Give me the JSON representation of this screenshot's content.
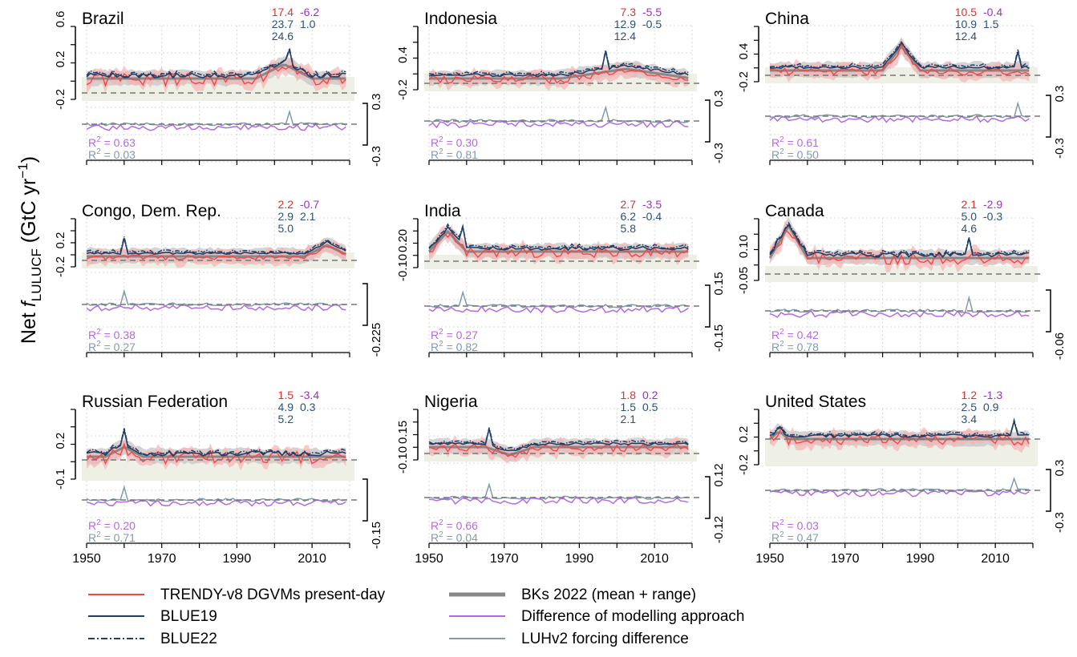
{
  "figure": {
    "ylabel_main": "Net ",
    "ylabel_italic": "f",
    "ylabel_sub": "LULUCF",
    "ylabel_unit": " (GtC yr",
    "ylabel_sup": "−1",
    "ylabel_close": ")"
  },
  "colors": {
    "trendy": "#f04848",
    "trendy_band": "#f7b3b3",
    "blue": "#1f3f66",
    "bk": "#888888",
    "bk_band": "#c9c9c9",
    "diff_model": "#b36ae2",
    "diff_luh": "#7f9bb0",
    "neg_band": "#eef0e6",
    "dash": "#777777",
    "stat_red": "#e03030",
    "stat_purple": "#9c2ecf",
    "stat_blue": "#2c5179"
  },
  "legend": [
    {
      "label": "TRENDY-v8 DGVMs present-day",
      "style": "trendy"
    },
    {
      "label": "BKs 2022 (mean + range)",
      "style": "bk"
    },
    {
      "label": "BLUE19",
      "style": "blue19"
    },
    {
      "label": "Difference of modelling approach",
      "style": "diffmodel"
    },
    {
      "label": "BLUE22",
      "style": "blue22"
    },
    {
      "label": "LUHv2 forcing difference",
      "style": "diffluh"
    }
  ],
  "x_ticks": [
    "1950",
    "1970",
    "1990",
    "2010"
  ],
  "chart_data": [
    {
      "type": "line",
      "title": "Brazil",
      "x_range": [
        1950,
        2020
      ],
      "upper_ticks": [
        "-0.2",
        "0.2",
        "0.6"
      ],
      "lower_ticks": [
        "-0.3",
        "0.3"
      ],
      "stats": {
        "trendy": "17.4",
        "trendy_diff": "-6.2",
        "blue19": "23.7",
        "blue19_diff": "1.0",
        "blue22": "24.6"
      },
      "r2_model": "0.63",
      "r2_luh": "0.03"
    },
    {
      "type": "line",
      "title": "Indonesia",
      "x_range": [
        1950,
        2020
      ],
      "upper_ticks": [
        "-0.2",
        "0.4"
      ],
      "lower_ticks": [
        "-0.3",
        "0.3"
      ],
      "stats": {
        "trendy": "7.3",
        "trendy_diff": "-5.5",
        "blue19": "12.9",
        "blue19_diff": "-0.5",
        "blue22": "12.4"
      },
      "r2_model": "0.30",
      "r2_luh": "0.81"
    },
    {
      "type": "line",
      "title": "China",
      "x_range": [
        1950,
        2020
      ],
      "upper_ticks": [
        "-0.2",
        "0.4"
      ],
      "lower_ticks": [
        "-0.3",
        "0.3"
      ],
      "stats": {
        "trendy": "10.5",
        "trendy_diff": "-0.4",
        "blue19": "10.9",
        "blue19_diff": "1.5",
        "blue22": "12.4"
      },
      "r2_model": "0.61",
      "r2_luh": "0.50"
    },
    {
      "type": "line",
      "title": "Congo, Dem. Rep.",
      "x_range": [
        1950,
        2020
      ],
      "upper_ticks": [
        "-0.2",
        "0.2"
      ],
      "lower_ticks": [
        "-0.225"
      ],
      "stats": {
        "trendy": "2.2",
        "trendy_diff": "-0.7",
        "blue19": "2.9",
        "blue19_diff": "2.1",
        "blue22": "5.0"
      },
      "r2_model": "0.38",
      "r2_luh": "0.27"
    },
    {
      "type": "line",
      "title": "India",
      "x_range": [
        1950,
        2020
      ],
      "upper_ticks": [
        "-0.10",
        "0.20"
      ],
      "lower_ticks": [
        "-0.15",
        "0.15"
      ],
      "stats": {
        "trendy": "2.7",
        "trendy_diff": "-3.5",
        "blue19": "6.2",
        "blue19_diff": "-0.4",
        "blue22": "5.8"
      },
      "r2_model": "0.27",
      "r2_luh": "0.82"
    },
    {
      "type": "line",
      "title": "Canada",
      "x_range": [
        1950,
        2020
      ],
      "upper_ticks": [
        "-0.05",
        "0.10"
      ],
      "lower_ticks": [
        "-0.06"
      ],
      "stats": {
        "trendy": "2.1",
        "trendy_diff": "-2.9",
        "blue19": "5.0",
        "blue19_diff": "-0.3",
        "blue22": "4.6"
      },
      "r2_model": "0.42",
      "r2_luh": "0.78"
    },
    {
      "type": "line",
      "title": "Russian Federation",
      "x_range": [
        1950,
        2020
      ],
      "upper_ticks": [
        "-0.1",
        "0.2"
      ],
      "lower_ticks": [
        "-0.15"
      ],
      "stats": {
        "trendy": "1.5",
        "trendy_diff": "-3.4",
        "blue19": "4.9",
        "blue19_diff": "0.3",
        "blue22": "5.2"
      },
      "r2_model": "0.20",
      "r2_luh": "0.71"
    },
    {
      "type": "line",
      "title": "Nigeria",
      "x_range": [
        1950,
        2020
      ],
      "upper_ticks": [
        "-0.10",
        "0.15"
      ],
      "lower_ticks": [
        "-0.12",
        "0.12"
      ],
      "stats": {
        "trendy": "1.8",
        "trendy_diff": "0.2",
        "blue19": "1.5",
        "blue19_diff": "0.5",
        "blue22": "2.1"
      },
      "r2_model": "0.66",
      "r2_luh": "0.04"
    },
    {
      "type": "line",
      "title": "United States",
      "x_range": [
        1950,
        2020
      ],
      "upper_ticks": [
        "-0.2",
        "0.2"
      ],
      "lower_ticks": [
        "-0.3",
        "0.3"
      ],
      "stats": {
        "trendy": "1.2",
        "trendy_diff": "-1.3",
        "blue19": "2.5",
        "blue19_diff": "0.9",
        "blue22": "3.4"
      },
      "r2_model": "0.03",
      "r2_luh": "0.47"
    }
  ]
}
